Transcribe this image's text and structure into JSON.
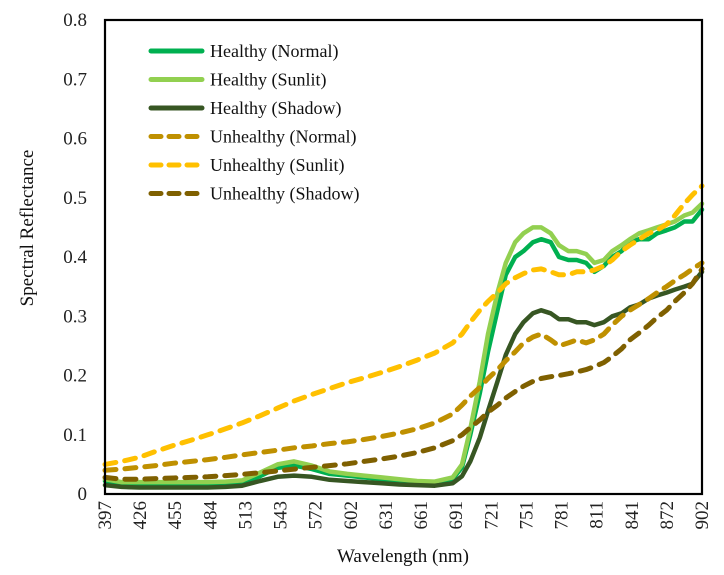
{
  "chart_data": {
    "type": "line",
    "title": "",
    "xlabel": "Wavelength (nm)",
    "ylabel": "Spectral Reflectance",
    "xlim": [
      397,
      902
    ],
    "ylim": [
      0,
      0.8
    ],
    "grid": false,
    "legend_position": "top-left",
    "x_ticks": [
      "397",
      "426",
      "455",
      "484",
      "513",
      "543",
      "572",
      "602",
      "631",
      "661",
      "691",
      "721",
      "751",
      "781",
      "811",
      "841",
      "872",
      "902"
    ],
    "y_ticks": [
      "0",
      "0.1",
      "0.2",
      "0.3",
      "0.4",
      "0.5",
      "0.6",
      "0.7",
      "0.8"
    ],
    "x": [
      397,
      411,
      426,
      440,
      455,
      470,
      484,
      499,
      513,
      528,
      543,
      557,
      572,
      587,
      602,
      616,
      631,
      646,
      661,
      676,
      691,
      699,
      706,
      714,
      721,
      729,
      736,
      744,
      751,
      759,
      766,
      774,
      781,
      789,
      796,
      804,
      811,
      819,
      826,
      834,
      841,
      849,
      857,
      864,
      872,
      879,
      887,
      894,
      902
    ],
    "series": [
      {
        "name": "Healthy (Normal)",
        "color": "#00B050",
        "dash": "solid",
        "values": [
          0.022,
          0.017,
          0.016,
          0.016,
          0.016,
          0.016,
          0.016,
          0.017,
          0.019,
          0.03,
          0.044,
          0.048,
          0.042,
          0.034,
          0.031,
          0.028,
          0.025,
          0.022,
          0.02,
          0.019,
          0.025,
          0.045,
          0.1,
          0.17,
          0.24,
          0.31,
          0.37,
          0.4,
          0.41,
          0.425,
          0.43,
          0.425,
          0.4,
          0.395,
          0.395,
          0.39,
          0.375,
          0.385,
          0.4,
          0.41,
          0.425,
          0.43,
          0.43,
          0.44,
          0.445,
          0.45,
          0.46,
          0.46,
          0.48
        ]
      },
      {
        "name": "Healthy (Sunlit)",
        "color": "#92D050",
        "dash": "solid",
        "values": [
          0.025,
          0.02,
          0.02,
          0.02,
          0.02,
          0.02,
          0.02,
          0.021,
          0.023,
          0.036,
          0.05,
          0.055,
          0.048,
          0.038,
          0.034,
          0.031,
          0.028,
          0.025,
          0.022,
          0.021,
          0.028,
          0.05,
          0.11,
          0.19,
          0.27,
          0.34,
          0.39,
          0.425,
          0.44,
          0.45,
          0.45,
          0.44,
          0.42,
          0.41,
          0.41,
          0.405,
          0.39,
          0.395,
          0.41,
          0.42,
          0.43,
          0.44,
          0.445,
          0.45,
          0.455,
          0.46,
          0.47,
          0.475,
          0.49
        ]
      },
      {
        "name": "Healthy (Shadow)",
        "color": "#375623",
        "dash": "solid",
        "values": [
          0.015,
          0.012,
          0.011,
          0.011,
          0.011,
          0.011,
          0.011,
          0.012,
          0.014,
          0.022,
          0.029,
          0.031,
          0.029,
          0.024,
          0.022,
          0.02,
          0.018,
          0.016,
          0.015,
          0.014,
          0.018,
          0.03,
          0.055,
          0.095,
          0.14,
          0.19,
          0.235,
          0.27,
          0.29,
          0.305,
          0.31,
          0.305,
          0.295,
          0.295,
          0.29,
          0.29,
          0.285,
          0.29,
          0.3,
          0.305,
          0.315,
          0.32,
          0.33,
          0.335,
          0.34,
          0.345,
          0.35,
          0.355,
          0.375
        ]
      },
      {
        "name": "Unhealthy (Normal)",
        "color": "#BF9000",
        "dash": "dashed",
        "values": [
          0.04,
          0.042,
          0.045,
          0.048,
          0.052,
          0.055,
          0.058,
          0.062,
          0.066,
          0.07,
          0.074,
          0.078,
          0.081,
          0.085,
          0.088,
          0.092,
          0.097,
          0.103,
          0.11,
          0.12,
          0.135,
          0.15,
          0.165,
          0.18,
          0.195,
          0.21,
          0.225,
          0.24,
          0.255,
          0.265,
          0.27,
          0.26,
          0.25,
          0.255,
          0.26,
          0.255,
          0.26,
          0.27,
          0.285,
          0.3,
          0.31,
          0.32,
          0.33,
          0.34,
          0.35,
          0.36,
          0.37,
          0.38,
          0.39
        ]
      },
      {
        "name": "Unhealthy (Sunlit)",
        "color": "#FFC000",
        "dash": "dashed",
        "values": [
          0.05,
          0.055,
          0.062,
          0.072,
          0.082,
          0.091,
          0.1,
          0.11,
          0.12,
          0.132,
          0.145,
          0.157,
          0.168,
          0.178,
          0.188,
          0.196,
          0.205,
          0.215,
          0.226,
          0.238,
          0.255,
          0.27,
          0.29,
          0.31,
          0.325,
          0.34,
          0.355,
          0.365,
          0.372,
          0.378,
          0.38,
          0.375,
          0.37,
          0.37,
          0.375,
          0.375,
          0.378,
          0.385,
          0.395,
          0.41,
          0.42,
          0.43,
          0.44,
          0.445,
          0.455,
          0.47,
          0.49,
          0.505,
          0.52
        ]
      },
      {
        "name": "Unhealthy (Shadow)",
        "color": "#7F6000",
        "dash": "dashed",
        "values": [
          0.028,
          0.025,
          0.025,
          0.026,
          0.027,
          0.028,
          0.029,
          0.031,
          0.033,
          0.036,
          0.039,
          0.042,
          0.045,
          0.048,
          0.051,
          0.055,
          0.059,
          0.064,
          0.07,
          0.078,
          0.09,
          0.1,
          0.112,
          0.125,
          0.138,
          0.15,
          0.162,
          0.173,
          0.182,
          0.19,
          0.195,
          0.198,
          0.2,
          0.203,
          0.206,
          0.21,
          0.215,
          0.222,
          0.232,
          0.245,
          0.26,
          0.272,
          0.285,
          0.298,
          0.31,
          0.325,
          0.34,
          0.355,
          0.38
        ]
      }
    ]
  }
}
